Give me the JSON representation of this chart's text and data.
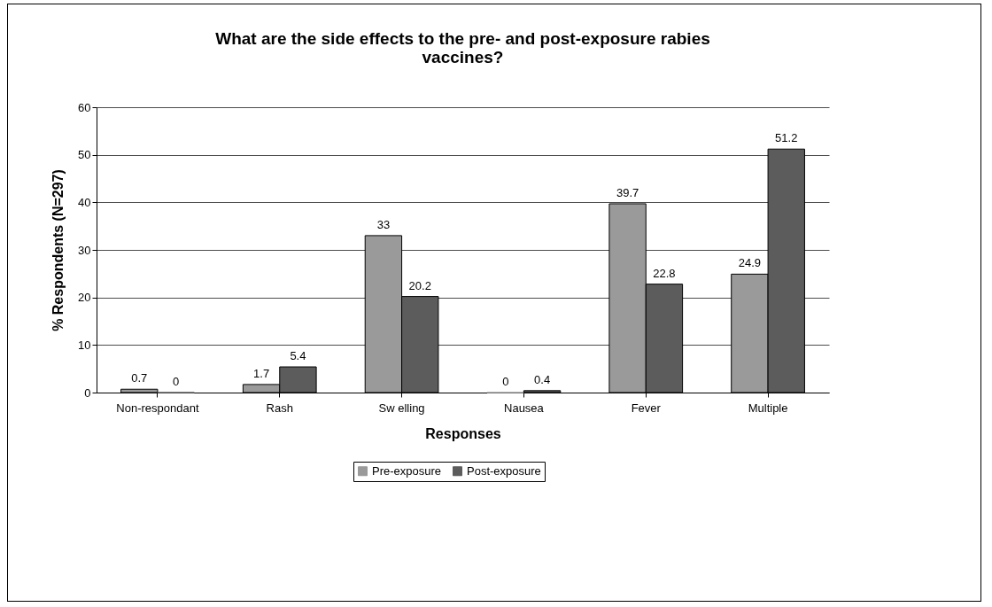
{
  "chart_data": {
    "type": "bar",
    "title": "What are the side effects to the pre- and post-exposure rabies vaccines?",
    "xlabel": "Responses",
    "ylabel": "% Respondents (N=297)",
    "categories": [
      "Non-respondant",
      "Rash",
      "Sw elling",
      "Nausea",
      "Fever",
      "Multiple"
    ],
    "series": [
      {
        "name": "Pre-exposure",
        "color": "#9a9a9a",
        "values": [
          0.7,
          1.7,
          33,
          0,
          39.7,
          24.9
        ]
      },
      {
        "name": "Post-exposure",
        "color": "#5c5c5c",
        "values": [
          0,
          5.4,
          20.2,
          0.4,
          22.8,
          51.2
        ]
      }
    ],
    "ylim": [
      0,
      60
    ],
    "yticks": [
      0,
      10,
      20,
      30,
      40,
      50,
      60
    ],
    "grid": "y",
    "legend": "bottom",
    "data_labels": true
  }
}
